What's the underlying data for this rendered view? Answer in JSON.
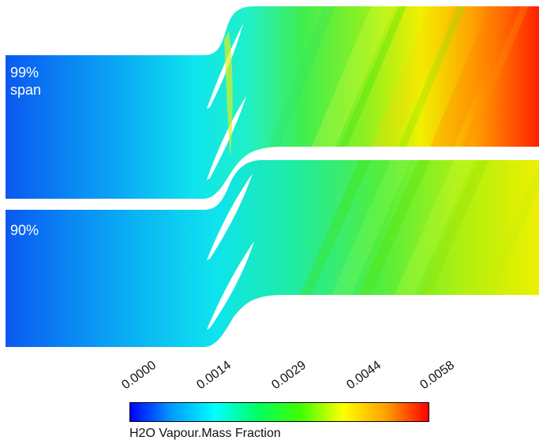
{
  "passages": [
    {
      "label_line1": "99%",
      "label_line2": "span"
    },
    {
      "label_line1": "90%",
      "label_line2": ""
    }
  ],
  "colorbar": {
    "title": "H2O Vapour.Mass Fraction",
    "ticks": [
      "0.0000",
      "0.0014",
      "0.0029",
      "0.0044",
      "0.0058"
    ],
    "min": 0.0,
    "max": 0.0058,
    "colors": [
      "#0000ff",
      "#00a0ff",
      "#00ffff",
      "#00ff60",
      "#40ff00",
      "#ffff00",
      "#ffa000",
      "#ff0000"
    ]
  },
  "colors": {
    "blade": "#ffffff",
    "background": "#ffffff",
    "label_text": "#ffffff"
  }
}
